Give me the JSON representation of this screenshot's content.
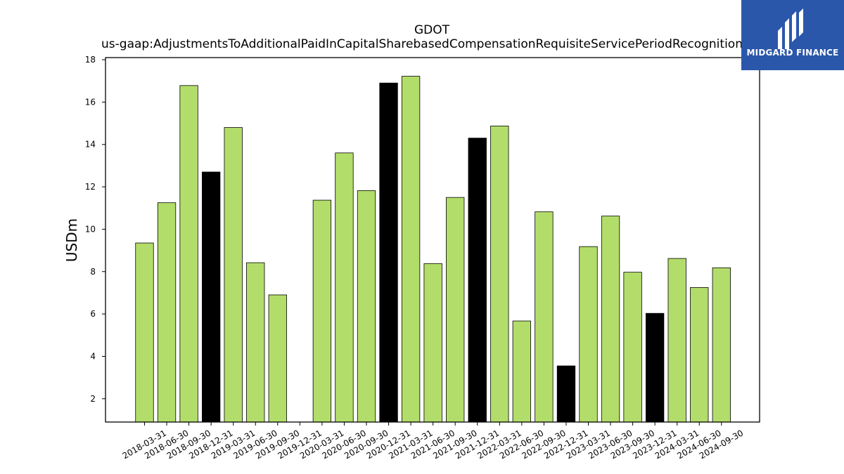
{
  "chart_data": {
    "type": "bar",
    "title": "GDOT",
    "subtitle": "us-gaap:AdjustmentsToAdditionalPaidInCapitalSharebasedCompensationRequisiteServicePeriodRecognition",
    "xlabel": "",
    "ylabel": "USDm",
    "ylim": [
      0.9,
      18.1
    ],
    "yticks": [
      2,
      4,
      6,
      8,
      10,
      12,
      14,
      16,
      18
    ],
    "categories": [
      "2018-03-31",
      "2018-06-30",
      "2018-09-30",
      "2018-12-31",
      "2019-03-31",
      "2019-06-30",
      "2019-09-30",
      "2019-12-31",
      "2020-03-31",
      "2020-06-30",
      "2020-09-30",
      "2020-12-31",
      "2021-03-31",
      "2021-06-30",
      "2021-09-30",
      "2021-12-31",
      "2022-03-31",
      "2022-06-30",
      "2022-09-30",
      "2022-12-31",
      "2023-03-31",
      "2023-06-30",
      "2023-09-30",
      "2023-12-31",
      "2024-03-31",
      "2024-06-30",
      "2024-09-30"
    ],
    "values": [
      9.35,
      11.25,
      16.78,
      12.7,
      14.8,
      8.42,
      6.9,
      null,
      11.37,
      13.6,
      11.82,
      16.9,
      17.22,
      8.38,
      11.5,
      14.3,
      14.87,
      5.67,
      10.82,
      3.55,
      9.18,
      10.62,
      7.97,
      6.03,
      8.62,
      7.25,
      8.18
    ],
    "highlight_quarter": "Q4",
    "colors": {
      "bar": "#b3dd6a",
      "highlight": "#000000",
      "edge": "#000000"
    },
    "grid": false,
    "legend": "none"
  },
  "logo": {
    "text": "MIDGARD FINANCE",
    "background": "#2b57aa"
  }
}
